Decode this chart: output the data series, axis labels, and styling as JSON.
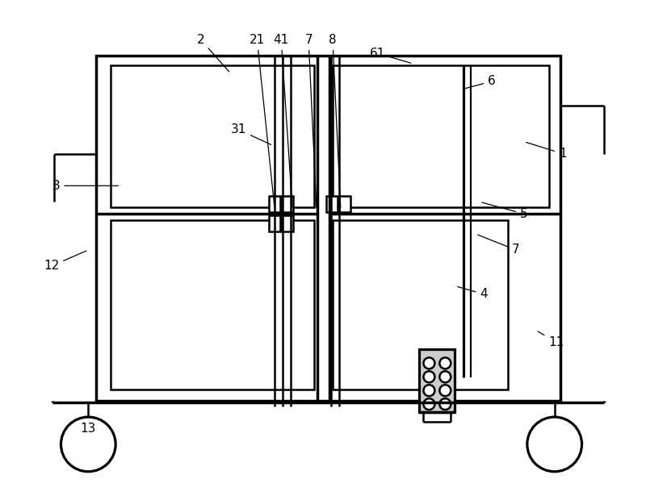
{
  "bg_color": "#ffffff",
  "line_color": "#000000",
  "lw": 1.8,
  "tlw": 2.5,
  "fig_width": 8.0,
  "fig_height": 6.2,
  "dpi": 100,
  "annotations": [
    [
      "2",
      248,
      572,
      285,
      530
    ],
    [
      "21",
      318,
      572,
      340,
      360
    ],
    [
      "41",
      348,
      572,
      362,
      360
    ],
    [
      "7",
      382,
      572,
      392,
      360
    ],
    [
      "8",
      412,
      572,
      422,
      360
    ],
    [
      "11",
      690,
      195,
      665,
      210
    ],
    [
      "12",
      62,
      290,
      108,
      310
    ],
    [
      "4",
      600,
      255,
      565,
      265
    ],
    [
      "7",
      640,
      310,
      590,
      330
    ],
    [
      "5",
      650,
      355,
      595,
      370
    ],
    [
      "3",
      68,
      390,
      148,
      390
    ],
    [
      "1",
      698,
      430,
      650,
      445
    ],
    [
      "13",
      108,
      88,
      108,
      105
    ],
    [
      "31",
      295,
      460,
      338,
      440
    ],
    [
      "6",
      610,
      520,
      572,
      510
    ],
    [
      "61",
      468,
      555,
      512,
      542
    ]
  ]
}
